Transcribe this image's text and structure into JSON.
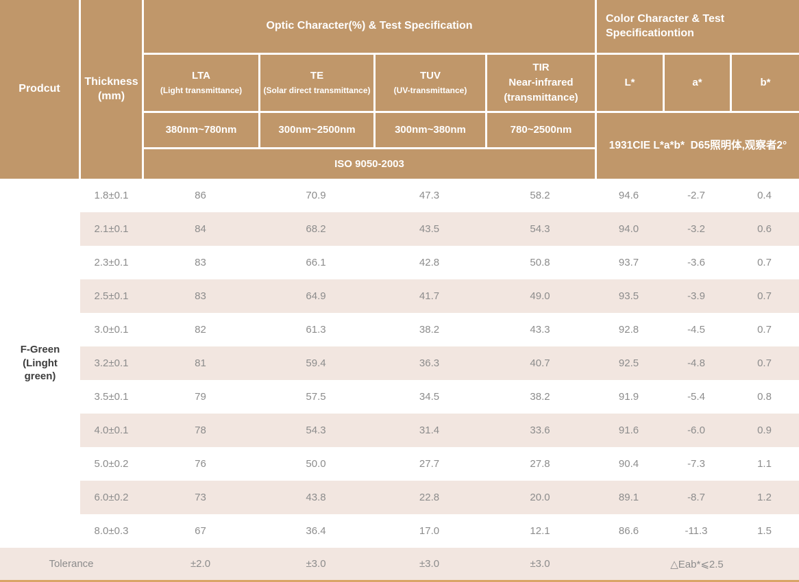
{
  "colors": {
    "header_bg": "#c0976a",
    "header_text": "#ffffff",
    "stripe_bg": "#f2e6e0",
    "body_text": "#8c8c8c",
    "product_text": "#3d3d3d",
    "bottom_line": "#d9a466"
  },
  "table": {
    "header": {
      "product": "Prodcut",
      "thickness": "Thickness\n(mm)",
      "optic_title": "Optic Character(%) & Test Specification",
      "color_title": "Color Character & Test\nSpecificationtion",
      "optic_columns": [
        {
          "name": "LTA",
          "desc": "(Light transmittance)",
          "range": "380nm~780nm"
        },
        {
          "name": "TE",
          "desc": "(Solar direct transmittance)",
          "range": "300nm~2500nm"
        },
        {
          "name": "TUV",
          "desc": "(UV-transmittance)",
          "range": "300nm~380nm"
        },
        {
          "name": "TIR\nNear-infrared\n(transmittance)",
          "desc": "",
          "range": "780~2500nm"
        }
      ],
      "iso_standard": "ISO 9050-2003",
      "lab_columns": [
        "L*",
        "a*",
        "b*"
      ],
      "cie_note": "1931CIE L*a*b*  D65照明体,观察者2°"
    },
    "product_label": "F-Green\n(Linght\ngreen)",
    "rows": [
      {
        "thickness": "1.8±0.1",
        "lta": "86",
        "te": "70.9",
        "tuv": "47.3",
        "tir": "58.2",
        "L": "94.6",
        "a": "-2.7",
        "b": "0.4"
      },
      {
        "thickness": "2.1±0.1",
        "lta": "84",
        "te": "68.2",
        "tuv": "43.5",
        "tir": "54.3",
        "L": "94.0",
        "a": "-3.2",
        "b": "0.6"
      },
      {
        "thickness": "2.3±0.1",
        "lta": "83",
        "te": "66.1",
        "tuv": "42.8",
        "tir": "50.8",
        "L": "93.7",
        "a": "-3.6",
        "b": "0.7"
      },
      {
        "thickness": "2.5±0.1",
        "lta": "83",
        "te": "64.9",
        "tuv": "41.7",
        "tir": "49.0",
        "L": "93.5",
        "a": "-3.9",
        "b": "0.7"
      },
      {
        "thickness": "3.0±0.1",
        "lta": "82",
        "te": "61.3",
        "tuv": "38.2",
        "tir": "43.3",
        "L": "92.8",
        "a": "-4.5",
        "b": "0.7"
      },
      {
        "thickness": "3.2±0.1",
        "lta": "81",
        "te": "59.4",
        "tuv": "36.3",
        "tir": "40.7",
        "L": "92.5",
        "a": "-4.8",
        "b": "0.7"
      },
      {
        "thickness": "3.5±0.1",
        "lta": "79",
        "te": "57.5",
        "tuv": "34.5",
        "tir": "38.2",
        "L": "91.9",
        "a": "-5.4",
        "b": "0.8"
      },
      {
        "thickness": "4.0±0.1",
        "lta": "78",
        "te": "54.3",
        "tuv": "31.4",
        "tir": "33.6",
        "L": "91.6",
        "a": "-6.0",
        "b": "0.9"
      },
      {
        "thickness": "5.0±0.2",
        "lta": "76",
        "te": "50.0",
        "tuv": "27.7",
        "tir": "27.8",
        "L": "90.4",
        "a": "-7.3",
        "b": "1.1"
      },
      {
        "thickness": "6.0±0.2",
        "lta": "73",
        "te": "43.8",
        "tuv": "22.8",
        "tir": "20.0",
        "L": "89.1",
        "a": "-8.7",
        "b": "1.2"
      },
      {
        "thickness": "8.0±0.3",
        "lta": "67",
        "te": "36.4",
        "tuv": "17.0",
        "tir": "12.1",
        "L": "86.6",
        "a": "-11.3",
        "b": "1.5"
      }
    ],
    "tolerance": {
      "label": "Tolerance",
      "lta": "±2.0",
      "te": "±3.0",
      "tuv": "±3.0",
      "tir": "±3.0",
      "color": "△Eab*⩽2.5"
    }
  },
  "chart_data": {
    "type": "table",
    "title": "Optic Character(%) & Test Specification / Color Character & Test Specificationtion",
    "columns": [
      "Prodcut",
      "Thickness (mm)",
      "LTA (Light transmittance) 380nm~780nm",
      "TE (Solar direct transmittance) 300nm~2500nm",
      "TUV (UV-transmittance) 300nm~380nm",
      "TIR Near-infrared (transmittance) 780~2500nm",
      "L*",
      "a*",
      "b*"
    ],
    "test_standard_optic": "ISO 9050-2003",
    "test_standard_color": "1931CIE L*a*b*  D65照明体,观察者2°",
    "product": "F-Green (Linght green)",
    "rows": [
      [
        "1.8±0.1",
        86,
        70.9,
        47.3,
        58.2,
        94.6,
        -2.7,
        0.4
      ],
      [
        "2.1±0.1",
        84,
        68.2,
        43.5,
        54.3,
        94.0,
        -3.2,
        0.6
      ],
      [
        "2.3±0.1",
        83,
        66.1,
        42.8,
        50.8,
        93.7,
        -3.6,
        0.7
      ],
      [
        "2.5±0.1",
        83,
        64.9,
        41.7,
        49.0,
        93.5,
        -3.9,
        0.7
      ],
      [
        "3.0±0.1",
        82,
        61.3,
        38.2,
        43.3,
        92.8,
        -4.5,
        0.7
      ],
      [
        "3.2±0.1",
        81,
        59.4,
        36.3,
        40.7,
        92.5,
        -4.8,
        0.7
      ],
      [
        "3.5±0.1",
        79,
        57.5,
        34.5,
        38.2,
        91.9,
        -5.4,
        0.8
      ],
      [
        "4.0±0.1",
        78,
        54.3,
        31.4,
        33.6,
        91.6,
        -6.0,
        0.9
      ],
      [
        "5.0±0.2",
        76,
        50.0,
        27.7,
        27.8,
        90.4,
        -7.3,
        1.1
      ],
      [
        "6.0±0.2",
        73,
        43.8,
        22.8,
        20.0,
        89.1,
        -8.7,
        1.2
      ],
      [
        "8.0±0.3",
        67,
        36.4,
        17.0,
        12.1,
        86.6,
        -11.3,
        1.5
      ]
    ],
    "tolerance_row": [
      "Tolerance",
      "±2.0",
      "±3.0",
      "±3.0",
      "±3.0",
      "△Eab*⩽2.5"
    ]
  }
}
